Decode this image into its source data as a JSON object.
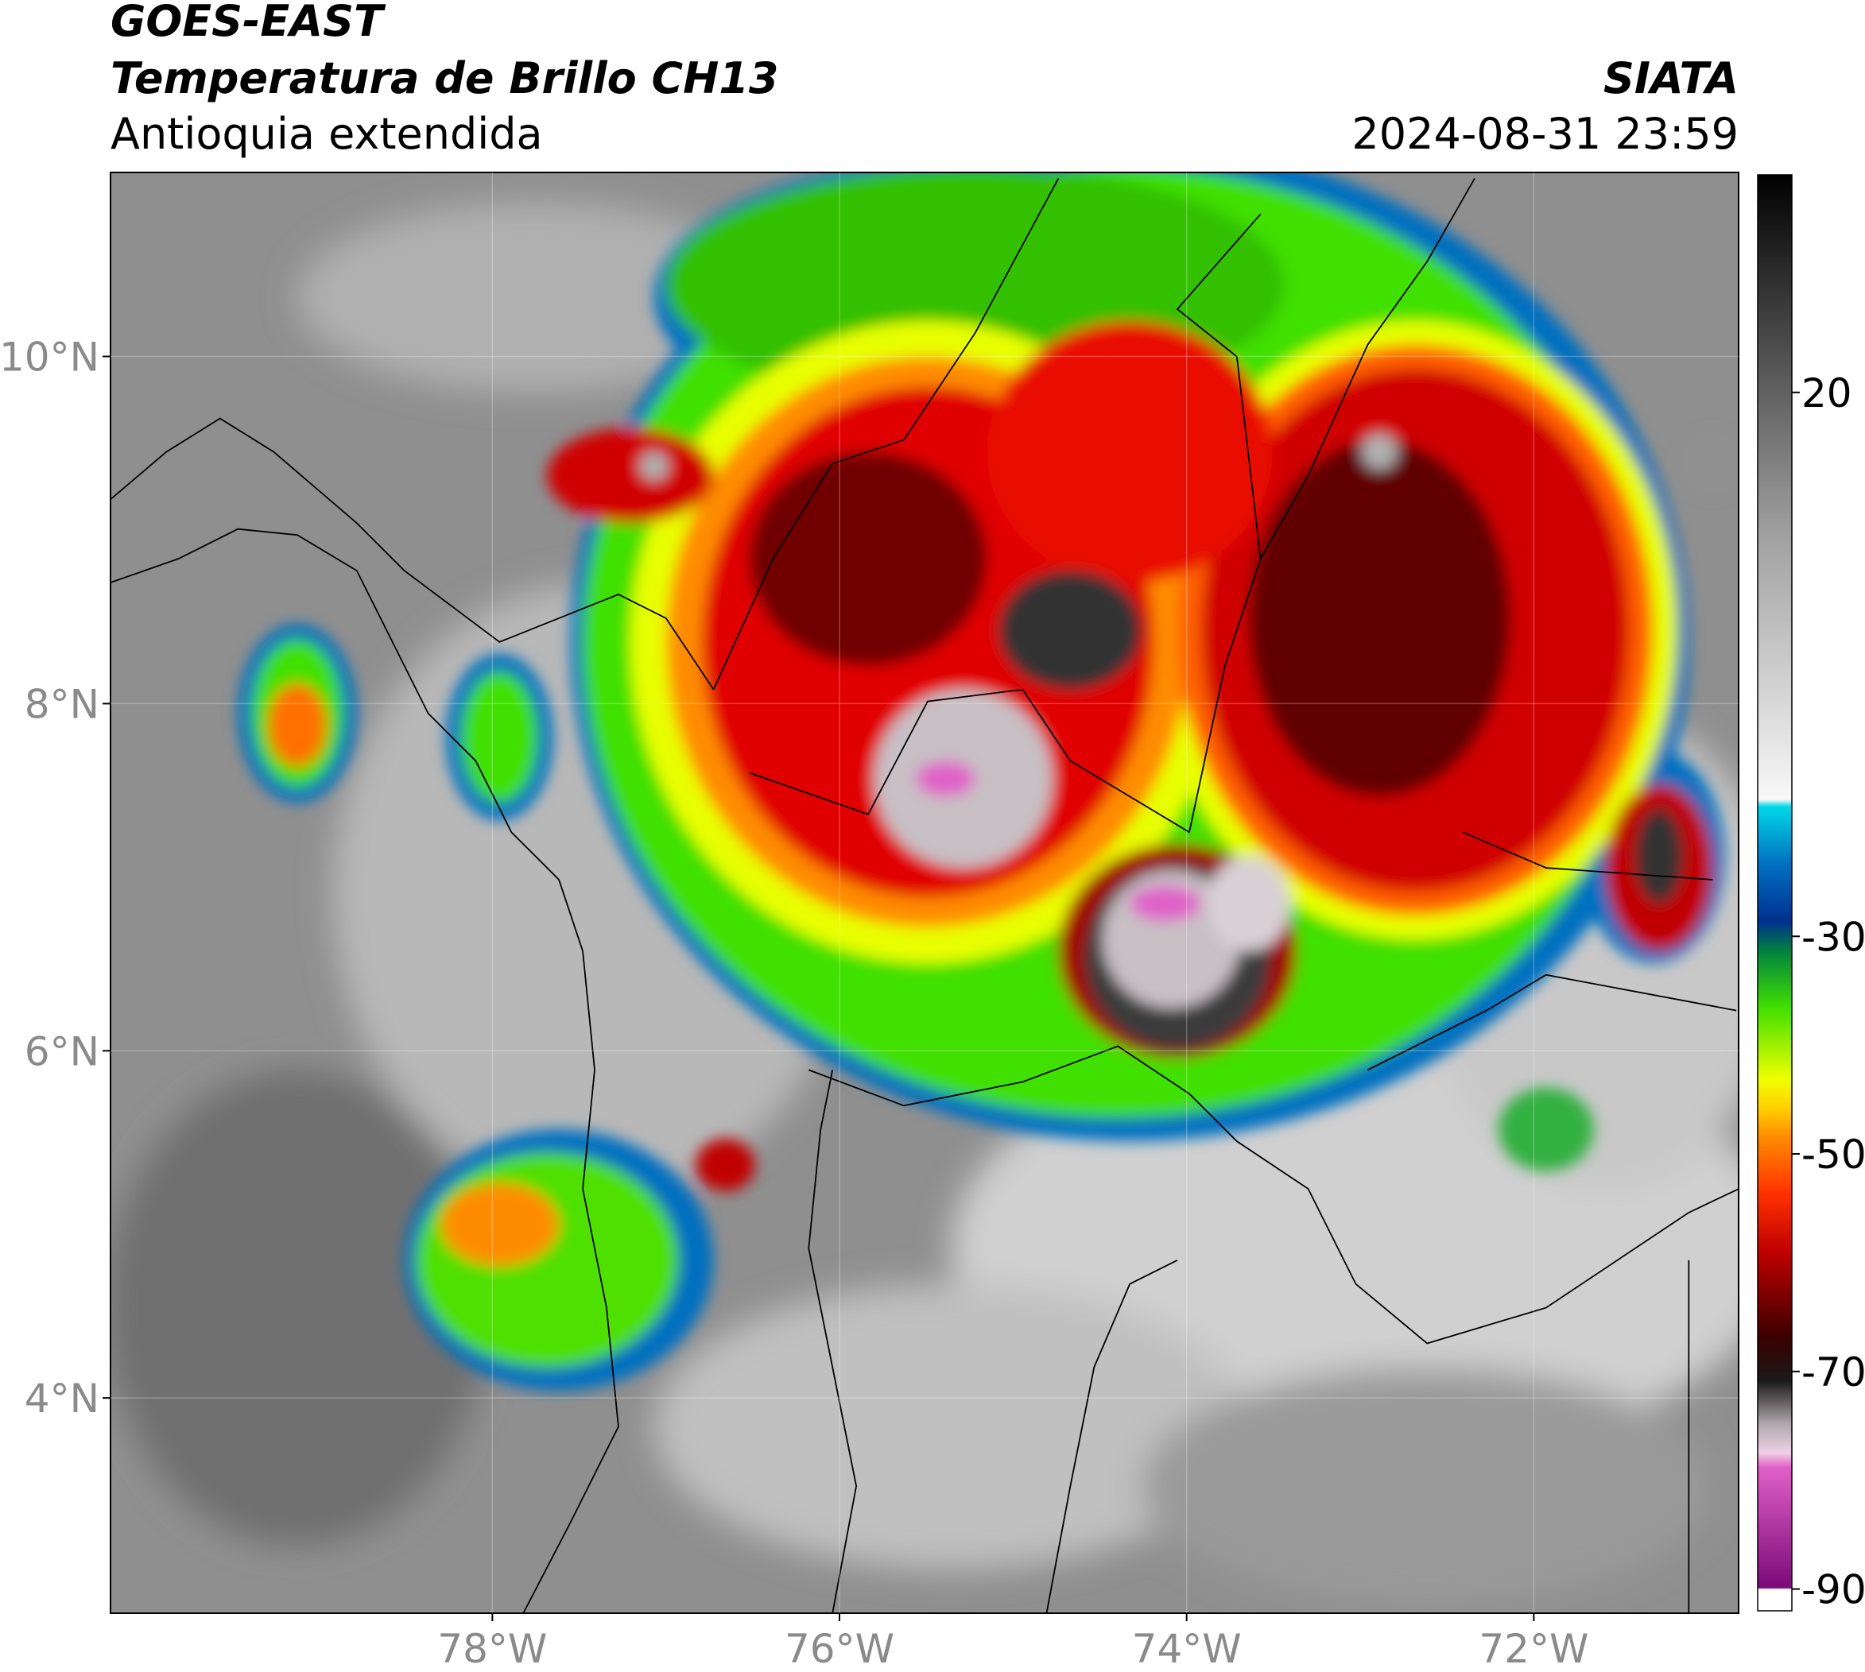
{
  "header": {
    "satellite": "GOES-EAST",
    "product": "Temperatura de Brillo CH13",
    "region": "Antioquia extendida",
    "source": "SIATA",
    "datetime": "2024-08-31 23:59"
  },
  "map": {
    "xlim": [
      -80.2,
      -70.82
    ],
    "ylim": [
      2.76,
      11.06
    ],
    "xticks": [
      {
        "value": -78,
        "label": "78°W"
      },
      {
        "value": -76,
        "label": "76°W"
      },
      {
        "value": -74,
        "label": "74°W"
      },
      {
        "value": -72,
        "label": "72°W"
      }
    ],
    "yticks": [
      {
        "value": 10,
        "label": "10°N"
      },
      {
        "value": 8,
        "label": "8°N"
      },
      {
        "value": 6,
        "label": "6°N"
      },
      {
        "value": 4,
        "label": "4°N"
      }
    ],
    "grid": true
  },
  "colorbar": {
    "lim": [
      -92,
      40
    ],
    "ticks": [
      20,
      -30,
      -50,
      -70,
      -90
    ]
  }
}
